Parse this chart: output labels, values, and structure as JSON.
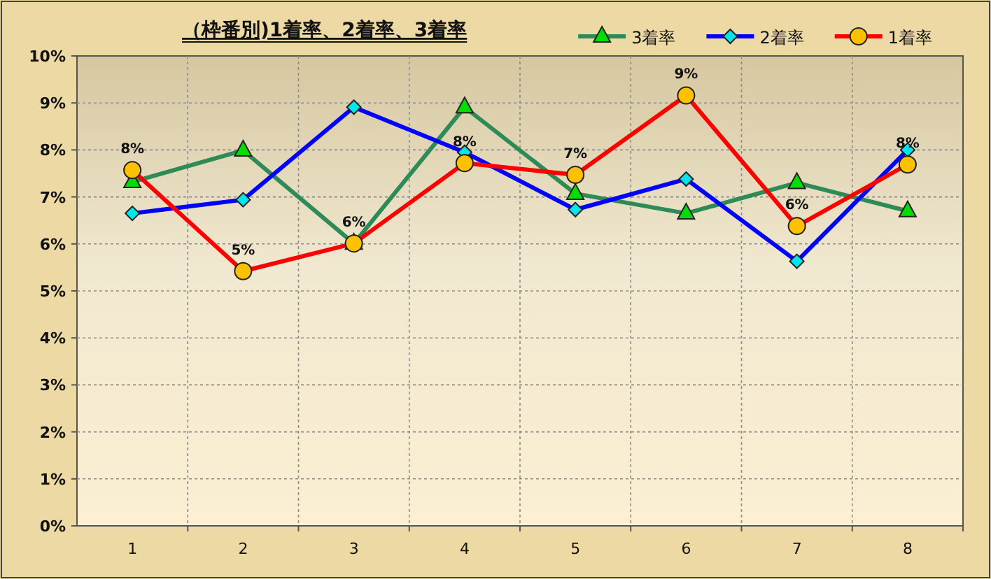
{
  "chart_data": {
    "type": "line",
    "title": "（枠番別)1着率、2着率、3着率",
    "categories": [
      "1",
      "2",
      "3",
      "4",
      "5",
      "6",
      "7",
      "8"
    ],
    "series": [
      {
        "name": "3着率",
        "color": "#2e8b57",
        "marker": "triangle",
        "values": [
          7.32,
          7.99,
          6.01,
          8.91,
          7.07,
          6.65,
          7.3,
          6.7
        ]
      },
      {
        "name": "2着率",
        "color": "#0000ff",
        "marker": "diamond",
        "values": [
          6.65,
          6.94,
          8.91,
          7.95,
          6.73,
          7.38,
          5.63,
          8.0
        ]
      },
      {
        "name": "1着率",
        "color": "#ff0000",
        "marker": "circle",
        "values": [
          7.57,
          5.42,
          6.01,
          7.72,
          7.47,
          9.16,
          6.38,
          7.69
        ],
        "value_labels": [
          "8%",
          "5%",
          "6%",
          "8%",
          "7%",
          "9%",
          "6%",
          "8%"
        ]
      }
    ],
    "ylim": [
      0,
      10
    ],
    "yticks": [
      {
        "value": 0,
        "label": "0%"
      },
      {
        "value": 1,
        "label": "1%"
      },
      {
        "value": 2,
        "label": "2%"
      },
      {
        "value": 3,
        "label": "3%"
      },
      {
        "value": 4,
        "label": "4%"
      },
      {
        "value": 5,
        "label": "5%"
      },
      {
        "value": 6,
        "label": "6%"
      },
      {
        "value": 7,
        "label": "7%"
      },
      {
        "value": 8,
        "label": "8%"
      },
      {
        "value": 9,
        "label": "9%"
      },
      {
        "value": 10,
        "label": "10%"
      }
    ],
    "grid": true,
    "legend": "top right",
    "line_style": "solid"
  }
}
